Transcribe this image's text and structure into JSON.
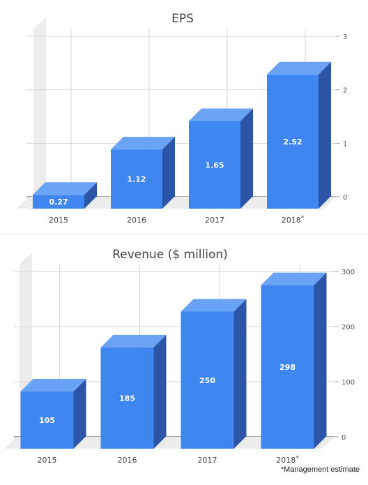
{
  "chart_data": [
    {
      "type": "bar",
      "title": "EPS",
      "categories": [
        "2015",
        "2016",
        "2017",
        "2018"
      ],
      "category_marks": [
        "",
        "",
        "",
        "*"
      ],
      "values": [
        0.27,
        1.12,
        1.65,
        2.52
      ],
      "value_labels": [
        "0.27",
        "1.12",
        "1.65",
        "2.52"
      ],
      "ylim": [
        0,
        3
      ],
      "yticks": [
        "0",
        "1",
        "2",
        "3"
      ],
      "grid": true,
      "axis_position": "right",
      "style": "3d",
      "colors": {
        "front": "#3f86f0",
        "top": "#6aa3f5",
        "side": "#2c55a8"
      }
    },
    {
      "type": "bar",
      "title": "Revenue ($ million)",
      "categories": [
        "2015",
        "2016",
        "2017",
        "2018"
      ],
      "category_marks": [
        "",
        "",
        "",
        "*"
      ],
      "values": [
        105,
        185,
        250,
        298
      ],
      "value_labels": [
        "105",
        "185",
        "250",
        "298"
      ],
      "ylim": [
        0,
        300
      ],
      "yticks": [
        "0",
        "100",
        "200",
        "300"
      ],
      "grid": true,
      "axis_position": "right",
      "style": "3d",
      "colors": {
        "front": "#3f86f0",
        "top": "#6aa3f5",
        "side": "#2c55a8"
      }
    }
  ],
  "footnote": "*Management estimate"
}
